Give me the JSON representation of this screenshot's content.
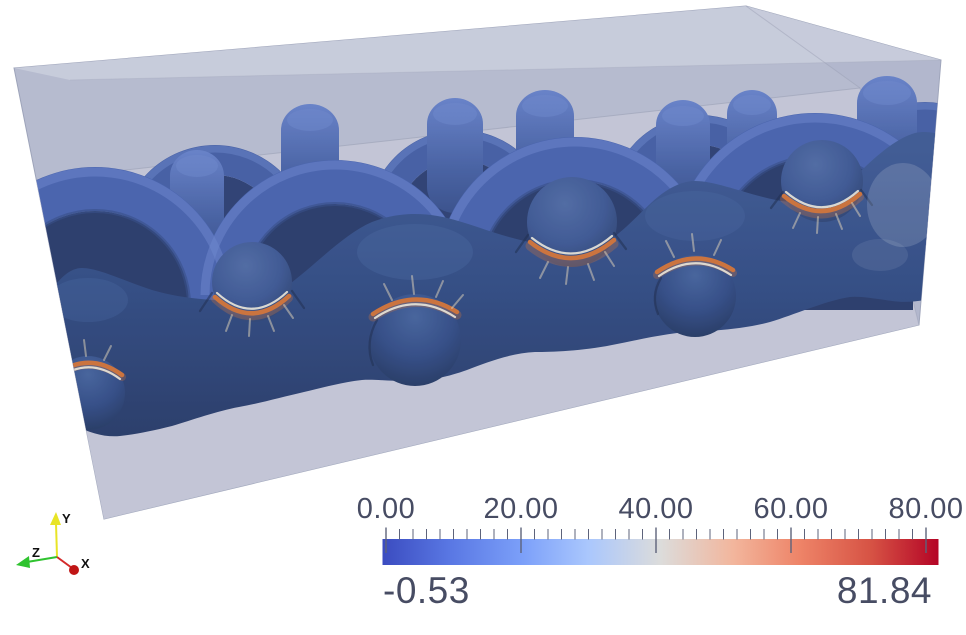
{
  "colorbar": {
    "tick_labels": [
      "0.00",
      "20.00",
      "40.00",
      "60.00",
      "80.00"
    ],
    "tick_values": [
      0,
      20,
      40,
      60,
      80
    ],
    "minor_tick_interval": 2,
    "value_min": -0.53,
    "value_max": 81.84,
    "min_label": "-0.53",
    "max_label": "81.84",
    "gradient_offsets": [
      0,
      0.12,
      0.25,
      0.37,
      0.5,
      0.63,
      0.75,
      0.88,
      1
    ],
    "gradient_stops": [
      "#3b4cc0",
      "#5977e3",
      "#7b9ff9",
      "#aac7fd",
      "#dcdcdb",
      "#f2b69d",
      "#ee8468",
      "#d65244",
      "#b40426"
    ],
    "label_color": "#474c63",
    "tick_color": "#5d637b"
  },
  "orientation_axes": {
    "x_label": "X",
    "y_label": "Y",
    "z_label": "Z",
    "x_color": "#d42a2a",
    "y_color": "#e8e426",
    "z_color": "#2fc32f",
    "label_color": "#101010"
  },
  "scene": {
    "background_color": "#ffffff",
    "box_back_face_color": "#b7bbd0",
    "box_floor_color": "#c5c8d8",
    "box_top_face_color": "#ced1df",
    "yarn_deep_blue": "#24407c",
    "yarn_mid_blue": "#3d59aa",
    "yarn_highlight_blue": "#6280cb",
    "contact_orange": "#cf6a2c",
    "description": "Semi-transparent rectangular unit-cell box containing a plain-woven yarn architecture; yarn surfaces colored by a scalar field, dark blue near 0 with orange contact lines where crossing yarns touch."
  },
  "chart_data": {
    "type": "heatmap",
    "title": "",
    "colormap": "cool-to-warm",
    "value_range": [
      -0.53,
      81.84
    ],
    "colorbar_tick_labels": [
      "0.00",
      "20.00",
      "40.00",
      "60.00",
      "80.00"
    ],
    "colorbar_tick_values": [
      0,
      20,
      40,
      60,
      80
    ],
    "colorbar_minor_tick_step": 2,
    "field_min": -0.53,
    "field_max": 81.84,
    "legend_position": "bottom",
    "notes": "3D finite-element visualization of a woven textile unit cell; most yarn surface sits near the field minimum (dark blue) while narrow yarn-to-yarn contact zones reach the maximum (orange/red)."
  }
}
